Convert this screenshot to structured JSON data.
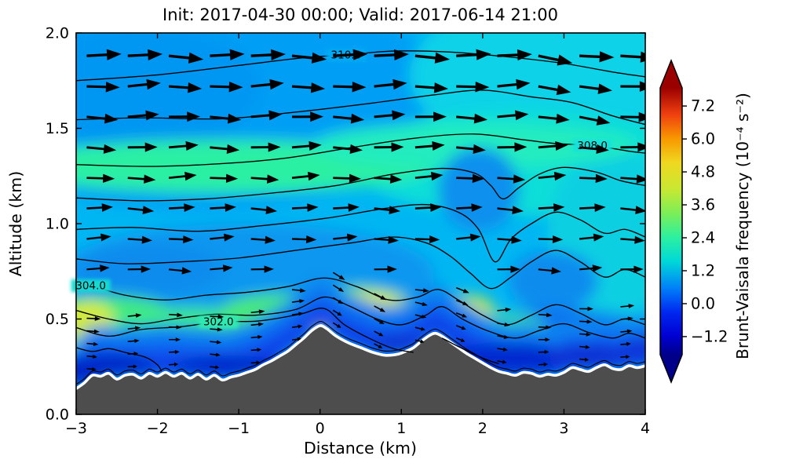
{
  "figure": {
    "background": "#ffffff"
  },
  "chart_data": {
    "type": "heatmap",
    "title": "Init: 2017-04-30 00:00; Valid: 2017-06-14 21:00",
    "xlabel": "Distance (km)",
    "ylabel": "Altitude (km)",
    "xlim": [
      -3,
      4
    ],
    "ylim": [
      0,
      2
    ],
    "xticks": [
      -3,
      -2,
      -1,
      0,
      1,
      2,
      3,
      4
    ],
    "xtick_labels": [
      "−3",
      "−2",
      "−1",
      "0",
      "1",
      "2",
      "3",
      "4"
    ],
    "yticks": [
      0,
      0.5,
      1,
      1.5,
      2
    ],
    "ytick_labels": [
      "0.0",
      "0.5",
      "1.0",
      "1.5",
      "2.0"
    ],
    "grid": false,
    "base_fill": "#00b6f2",
    "terrain_color": "#4d4d4d",
    "terrain_outline": "#ffffff",
    "colorbar": {
      "label": "Brunt-Vaisala frequency (10⁻⁴ s⁻²)",
      "tick_values": [
        7.2,
        6.0,
        4.8,
        3.6,
        2.4,
        1.2,
        0.0,
        -1.2
      ],
      "tick_labels": [
        "7.2",
        "6.0",
        "4.8",
        "3.6",
        "2.4",
        "1.2",
        "0.0",
        "−1.2"
      ],
      "range": [
        -1.86,
        7.86
      ],
      "extend": "both",
      "stops": [
        [
          0.0,
          "#00008b"
        ],
        [
          0.07,
          "#0000d2"
        ],
        [
          0.16,
          "#0028f0"
        ],
        [
          0.25,
          "#0080f8"
        ],
        [
          0.35,
          "#00d8d8"
        ],
        [
          0.44,
          "#2cf0a0"
        ],
        [
          0.53,
          "#7cee58"
        ],
        [
          0.62,
          "#c8e832"
        ],
        [
          0.72,
          "#f0d820"
        ],
        [
          0.81,
          "#f89800"
        ],
        [
          0.9,
          "#f04010"
        ],
        [
          1.0,
          "#9b0000"
        ]
      ]
    },
    "terrain_profile": [
      [
        -3,
        0.135
      ],
      [
        -2.9,
        0.165
      ],
      [
        -2.8,
        0.205
      ],
      [
        -2.7,
        0.2
      ],
      [
        -2.6,
        0.215
      ],
      [
        -2.5,
        0.185
      ],
      [
        -2.4,
        0.205
      ],
      [
        -2.3,
        0.21
      ],
      [
        -2.2,
        0.19
      ],
      [
        -2.1,
        0.215
      ],
      [
        -2.0,
        0.2
      ],
      [
        -1.9,
        0.22
      ],
      [
        -1.8,
        0.2
      ],
      [
        -1.7,
        0.215
      ],
      [
        -1.6,
        0.19
      ],
      [
        -1.5,
        0.21
      ],
      [
        -1.4,
        0.185
      ],
      [
        -1.3,
        0.205
      ],
      [
        -1.2,
        0.18
      ],
      [
        -1.1,
        0.195
      ],
      [
        -1.0,
        0.205
      ],
      [
        -0.9,
        0.22
      ],
      [
        -0.8,
        0.235
      ],
      [
        -0.7,
        0.26
      ],
      [
        -0.6,
        0.28
      ],
      [
        -0.5,
        0.305
      ],
      [
        -0.4,
        0.33
      ],
      [
        -0.3,
        0.365
      ],
      [
        -0.2,
        0.4
      ],
      [
        -0.1,
        0.44
      ],
      [
        0,
        0.465
      ],
      [
        0.08,
        0.45
      ],
      [
        0.2,
        0.41
      ],
      [
        0.35,
        0.375
      ],
      [
        0.5,
        0.35
      ],
      [
        0.65,
        0.325
      ],
      [
        0.8,
        0.31
      ],
      [
        0.95,
        0.315
      ],
      [
        1.05,
        0.33
      ],
      [
        1.15,
        0.35
      ],
      [
        1.25,
        0.385
      ],
      [
        1.35,
        0.415
      ],
      [
        1.42,
        0.425
      ],
      [
        1.5,
        0.41
      ],
      [
        1.6,
        0.38
      ],
      [
        1.7,
        0.35
      ],
      [
        1.8,
        0.32
      ],
      [
        1.9,
        0.295
      ],
      [
        2.0,
        0.27
      ],
      [
        2.1,
        0.245
      ],
      [
        2.2,
        0.225
      ],
      [
        2.3,
        0.215
      ],
      [
        2.4,
        0.205
      ],
      [
        2.5,
        0.22
      ],
      [
        2.6,
        0.215
      ],
      [
        2.7,
        0.2
      ],
      [
        2.8,
        0.21
      ],
      [
        2.9,
        0.205
      ],
      [
        3.0,
        0.22
      ],
      [
        3.1,
        0.245
      ],
      [
        3.2,
        0.235
      ],
      [
        3.3,
        0.225
      ],
      [
        3.4,
        0.245
      ],
      [
        3.5,
        0.26
      ],
      [
        3.6,
        0.24
      ],
      [
        3.7,
        0.235
      ],
      [
        3.8,
        0.255
      ],
      [
        3.9,
        0.245
      ],
      [
        4,
        0.255
      ]
    ],
    "theta_contours": {
      "units": "K",
      "labels": [
        {
          "text": "310.0",
          "x": 0.32,
          "alt": 1.885,
          "patch": "#00aaf5"
        },
        {
          "text": "308.0",
          "x": 3.35,
          "alt": 1.41,
          "patch": "#12e2da"
        },
        {
          "text": "304.0",
          "x": -2.82,
          "alt": 0.675,
          "patch": "#16dad2"
        },
        {
          "text": "302.0",
          "x": -1.25,
          "alt": 0.485,
          "patch": "#2fe9b2"
        }
      ],
      "lines": [
        [
          [
            -3,
            1.75
          ],
          [
            -2,
            1.78
          ],
          [
            -1,
            1.83
          ],
          [
            -0.2,
            1.87
          ],
          [
            0.32,
            1.885
          ],
          [
            0.9,
            1.905
          ],
          [
            1.6,
            1.9
          ],
          [
            2.3,
            1.875
          ],
          [
            3,
            1.84
          ],
          [
            3.6,
            1.795
          ],
          [
            4,
            1.77
          ]
        ],
        [
          [
            -3,
            1.545
          ],
          [
            -2.2,
            1.555
          ],
          [
            -1.2,
            1.55
          ],
          [
            -0.3,
            1.585
          ],
          [
            0.6,
            1.63
          ],
          [
            1.4,
            1.675
          ],
          [
            2,
            1.7
          ],
          [
            2.6,
            1.665
          ],
          [
            3.1,
            1.635
          ],
          [
            3.6,
            1.565
          ],
          [
            4,
            1.52
          ]
        ],
        [
          [
            -3,
            1.31
          ],
          [
            -2.1,
            1.3
          ],
          [
            -1.2,
            1.315
          ],
          [
            -0.4,
            1.345
          ],
          [
            0.4,
            1.4
          ],
          [
            1.2,
            1.45
          ],
          [
            1.9,
            1.47
          ],
          [
            2.5,
            1.44
          ],
          [
            2.9,
            1.42
          ],
          [
            3.35,
            1.41
          ],
          [
            3.8,
            1.38
          ],
          [
            4,
            1.37
          ]
        ],
        [
          [
            -3,
            1.135
          ],
          [
            -2.2,
            1.12
          ],
          [
            -1.4,
            1.13
          ],
          [
            -0.6,
            1.16
          ],
          [
            0.2,
            1.2
          ],
          [
            0.9,
            1.26
          ],
          [
            1.5,
            1.29
          ],
          [
            1.9,
            1.265
          ],
          [
            2.1,
            1.2
          ],
          [
            2.25,
            1.13
          ],
          [
            2.45,
            1.19
          ],
          [
            2.7,
            1.26
          ],
          [
            3,
            1.295
          ],
          [
            3.4,
            1.27
          ],
          [
            3.7,
            1.225
          ],
          [
            4,
            1.2
          ]
        ],
        [
          [
            -3,
            0.97
          ],
          [
            -2.3,
            0.98
          ],
          [
            -1.5,
            0.96
          ],
          [
            -0.7,
            0.99
          ],
          [
            0.1,
            1.03
          ],
          [
            0.8,
            1.08
          ],
          [
            1.3,
            1.1
          ],
          [
            1.7,
            1.06
          ],
          [
            1.95,
            0.97
          ],
          [
            2.15,
            0.8
          ],
          [
            2.35,
            0.92
          ],
          [
            2.6,
            1
          ],
          [
            2.9,
            1.06
          ],
          [
            3.2,
            1.02
          ],
          [
            3.5,
            0.95
          ],
          [
            3.75,
            0.97
          ],
          [
            4,
            0.93
          ]
        ],
        [
          [
            -3,
            0.815
          ],
          [
            -2.4,
            0.79
          ],
          [
            -1.7,
            0.8
          ],
          [
            -1,
            0.82
          ],
          [
            -0.3,
            0.86
          ],
          [
            0.4,
            0.9
          ],
          [
            0.9,
            0.93
          ],
          [
            1.3,
            0.9
          ],
          [
            1.6,
            0.83
          ],
          [
            1.85,
            0.74
          ],
          [
            2.1,
            0.66
          ],
          [
            2.35,
            0.72
          ],
          [
            2.6,
            0.8
          ],
          [
            2.9,
            0.86
          ],
          [
            3.2,
            0.8
          ],
          [
            3.5,
            0.72
          ],
          [
            3.75,
            0.76
          ],
          [
            4,
            0.72
          ]
        ],
        [
          [
            -3,
            0.68
          ],
          [
            -2.82,
            0.675
          ],
          [
            -2.4,
            0.625
          ],
          [
            -1.9,
            0.6
          ],
          [
            -1.4,
            0.625
          ],
          [
            -0.9,
            0.64
          ],
          [
            -0.4,
            0.67
          ],
          [
            0.05,
            0.715
          ],
          [
            0.45,
            0.67
          ],
          [
            0.85,
            0.6
          ],
          [
            1.2,
            0.615
          ],
          [
            1.45,
            0.655
          ],
          [
            1.7,
            0.6
          ],
          [
            2,
            0.52
          ],
          [
            2.3,
            0.47
          ],
          [
            2.6,
            0.52
          ],
          [
            2.9,
            0.575
          ],
          [
            3.2,
            0.53
          ],
          [
            3.5,
            0.47
          ],
          [
            3.75,
            0.5
          ],
          [
            4,
            0.47
          ]
        ],
        [
          [
            -3,
            0.545
          ],
          [
            -2.6,
            0.5
          ],
          [
            -2.2,
            0.475
          ],
          [
            -1.8,
            0.5
          ],
          [
            -1.3,
            0.525
          ],
          [
            -0.8,
            0.52
          ],
          [
            -0.3,
            0.55
          ],
          [
            0.05,
            0.615
          ],
          [
            0.35,
            0.57
          ],
          [
            0.7,
            0.5
          ],
          [
            1,
            0.47
          ],
          [
            1.3,
            0.52
          ],
          [
            1.5,
            0.565
          ],
          [
            1.75,
            0.5
          ],
          [
            2.05,
            0.44
          ],
          [
            2.4,
            0.4
          ],
          [
            2.7,
            0.44
          ],
          [
            3,
            0.475
          ],
          [
            3.3,
            0.43
          ],
          [
            3.6,
            0.4
          ],
          [
            3.8,
            0.425
          ],
          [
            4,
            0.4
          ]
        ],
        [
          [
            -3,
            0.455
          ],
          [
            -2.6,
            0.41
          ],
          [
            -2.2,
            0.445
          ],
          [
            -1.7,
            0.46
          ],
          [
            -1.25,
            0.485
          ],
          [
            -0.75,
            0.49
          ],
          [
            -0.25,
            0.525
          ],
          [
            0.05,
            0.555
          ],
          [
            0.3,
            0.47
          ],
          [
            0.6,
            0.4
          ],
          [
            0.9,
            0.345
          ],
          [
            1.15,
            0.325
          ]
        ],
        [
          [
            -3,
            0.35
          ],
          [
            -2.8,
            0.33
          ],
          [
            -2.6,
            0.345
          ],
          [
            -2.4,
            0.325
          ],
          [
            -2.15,
            0.3
          ],
          [
            -2,
            0.26
          ],
          [
            -1.95,
            0.225
          ]
        ],
        [
          [
            1.5,
            0.4
          ],
          [
            1.75,
            0.345
          ],
          [
            2,
            0.295
          ],
          [
            2.2,
            0.265
          ]
        ]
      ]
    },
    "shading_blobs": [
      [
        -1.5,
        1.65,
        3.2,
        0.58,
        "#009ff5"
      ],
      [
        -2.2,
        1.72,
        1.5,
        0.33,
        "#0697f2"
      ],
      [
        3.0,
        1.78,
        1.9,
        0.42,
        "#0bd2e8"
      ],
      [
        2.5,
        1.32,
        2.1,
        0.28,
        "#10ded8"
      ],
      [
        3.6,
        0.95,
        0.8,
        0.45,
        "#0fcfe2"
      ],
      [
        -1.2,
        1.3,
        2.6,
        0.14,
        "#2bf0a4"
      ],
      [
        1.9,
        1.41,
        2.0,
        0.12,
        "#22ecc0"
      ],
      [
        -0.9,
        0.74,
        2.3,
        0.26,
        "#0b97f0"
      ],
      [
        -2.1,
        0.76,
        0.9,
        0.14,
        "#0a8cee"
      ],
      [
        1.95,
        1.18,
        0.5,
        0.22,
        "#0d90ee"
      ],
      [
        2.87,
        0.7,
        0.55,
        0.16,
        "#0c8cee"
      ],
      [
        1.08,
        0.53,
        0.5,
        0.11,
        "#0d95f0"
      ],
      [
        2.9,
        0.4,
        1.4,
        0.15,
        "#0a6ff0"
      ],
      [
        -2.6,
        0.52,
        0.8,
        0.1,
        "#43e980"
      ],
      [
        -1.6,
        0.47,
        0.95,
        0.09,
        "#3eea8a"
      ],
      [
        -0.5,
        0.53,
        0.75,
        0.1,
        "#49e979"
      ],
      [
        0.35,
        0.56,
        0.8,
        0.11,
        "#52ea6e"
      ],
      [
        1.5,
        0.53,
        0.65,
        0.1,
        "#45e87f"
      ],
      [
        2.25,
        0.45,
        0.55,
        0.08,
        "#3cdfa2"
      ],
      [
        -2.88,
        0.5,
        0.35,
        0.09,
        "#d9ec38"
      ],
      [
        -2.9,
        0.44,
        0.3,
        0.07,
        "#cde93a"
      ],
      [
        0.55,
        0.555,
        0.55,
        0.085,
        "#e4ef2d"
      ],
      [
        0.05,
        0.5,
        0.3,
        0.065,
        "#bce83c"
      ],
      [
        1.76,
        0.555,
        0.38,
        0.07,
        "#cbe93a"
      ],
      [
        1.2,
        0.5,
        0.3,
        0.06,
        "#a8e748"
      ]
    ],
    "surface_layers": [
      {
        "lo": 0.0,
        "hi": 0.085,
        "color": "#0934e6"
      },
      {
        "lo": 0.085,
        "hi": 0.17,
        "color": "#0a5af0"
      },
      {
        "lo": 0.17,
        "hi": 0.26,
        "color": "#0b84f0"
      }
    ],
    "valley_cores": [
      [
        -2.95,
        0.23,
        0.3,
        0.08,
        "#0626c6"
      ],
      [
        -2.6,
        0.26,
        0.55,
        0.06,
        "#0627c8"
      ],
      [
        -1.15,
        0.255,
        0.65,
        0.055,
        "#0628ca"
      ],
      [
        0.97,
        0.37,
        0.3,
        0.05,
        "#0730d2"
      ],
      [
        2.3,
        0.29,
        0.75,
        0.09,
        "#062bd0"
      ],
      [
        3.3,
        0.3,
        0.5,
        0.07,
        "#0730d4"
      ],
      [
        3.95,
        0.33,
        0.3,
        0.08,
        "#0838da"
      ]
    ],
    "wind_quiver": {
      "x_start_km": -2.87,
      "x_step_km": 0.505,
      "columns": 14,
      "surface_alt": [
        0.19,
        0.2,
        0.21,
        0.2,
        0.22,
        0.34,
        0.43,
        0.32,
        0.34,
        0.35,
        0.23,
        0.21,
        0.24,
        0.25
      ],
      "upper_levels": [
        0.6,
        0.76,
        0.92,
        1.08,
        1.24,
        1.4,
        1.56,
        1.72,
        1.88
      ],
      "downslope": [
        {
          "col": 5,
          "below": 0.62,
          "deg": -8
        },
        {
          "col": 6,
          "below": 0.8,
          "deg": 32
        },
        {
          "col": 7,
          "below": 0.7,
          "deg": 28
        },
        {
          "col": 8,
          "below": 0.64,
          "deg": 14
        },
        {
          "col": 9,
          "below": 0.68,
          "deg": 22
        },
        {
          "col": 10,
          "below": 0.5,
          "deg": 10
        }
      ]
    }
  }
}
